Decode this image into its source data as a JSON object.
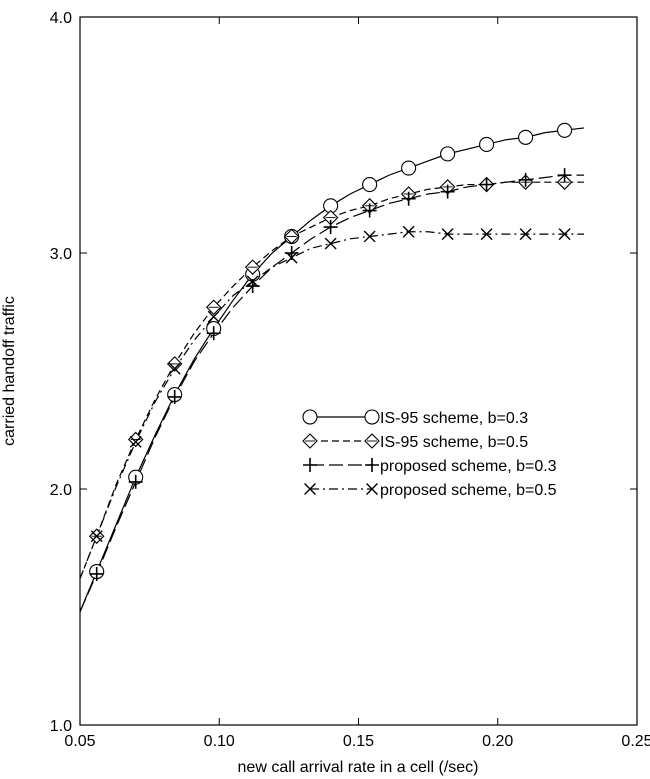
{
  "chart_data": {
    "type": "line",
    "title": "",
    "xlabel": "new call arrival rate in a cell (/sec)",
    "ylabel": "carried handoff traffic",
    "xlim": [
      0.05,
      0.25
    ],
    "ylim": [
      1.0,
      4.0
    ],
    "x_ticks": [
      "0.05",
      "0.10",
      "0.15",
      "0.20",
      "0.25"
    ],
    "y_ticks": [
      "1.0",
      "2.0",
      "3.0",
      "4.0"
    ],
    "grid": false,
    "legend_position": "center-right",
    "series": [
      {
        "name": "IS-95 scheme, b=0.3",
        "line_style": "solid",
        "marker": "circle",
        "x": [
          0.056,
          0.07,
          0.084,
          0.098,
          0.112,
          0.126,
          0.14,
          0.154,
          0.168,
          0.182,
          0.196,
          0.21,
          0.224
        ],
        "y": [
          1.65,
          2.05,
          2.4,
          2.68,
          2.91,
          3.07,
          3.2,
          3.29,
          3.36,
          3.42,
          3.46,
          3.49,
          3.52
        ],
        "curve_x": [
          0.05,
          0.056,
          0.063,
          0.07,
          0.077,
          0.084,
          0.091,
          0.098,
          0.105,
          0.112,
          0.119,
          0.126,
          0.133,
          0.14,
          0.147,
          0.154,
          0.161,
          0.168,
          0.175,
          0.182,
          0.189,
          0.196,
          0.203,
          0.21,
          0.217,
          0.224,
          0.231
        ],
        "curve_y": [
          1.48,
          1.65,
          1.85,
          2.05,
          2.23,
          2.4,
          2.55,
          2.68,
          2.8,
          2.91,
          3.0,
          3.07,
          3.14,
          3.2,
          3.25,
          3.29,
          3.33,
          3.36,
          3.39,
          3.42,
          3.44,
          3.46,
          3.48,
          3.49,
          3.51,
          3.52,
          3.53
        ]
      },
      {
        "name": "IS-95 scheme, b=0.5",
        "line_style": "dashed",
        "marker": "diamond",
        "x": [
          0.056,
          0.07,
          0.084,
          0.098,
          0.112,
          0.126,
          0.14,
          0.154,
          0.168,
          0.182,
          0.196,
          0.21,
          0.224
        ],
        "y": [
          1.8,
          2.21,
          2.53,
          2.77,
          2.94,
          3.07,
          3.15,
          3.2,
          3.25,
          3.28,
          3.29,
          3.3,
          3.3
        ],
        "curve_x": [
          0.05,
          0.056,
          0.063,
          0.07,
          0.077,
          0.084,
          0.091,
          0.098,
          0.105,
          0.112,
          0.119,
          0.126,
          0.133,
          0.14,
          0.147,
          0.154,
          0.161,
          0.168,
          0.175,
          0.182,
          0.189,
          0.196,
          0.203,
          0.21,
          0.217,
          0.224,
          0.231
        ],
        "curve_y": [
          1.62,
          1.8,
          2.02,
          2.21,
          2.38,
          2.53,
          2.66,
          2.77,
          2.86,
          2.94,
          3.01,
          3.07,
          3.11,
          3.15,
          3.18,
          3.2,
          3.23,
          3.25,
          3.27,
          3.28,
          3.29,
          3.29,
          3.3,
          3.3,
          3.3,
          3.3,
          3.3
        ]
      },
      {
        "name": "proposed scheme, b=0.3",
        "line_style": "long-dash",
        "marker": "plus",
        "x": [
          0.056,
          0.07,
          0.084,
          0.098,
          0.112,
          0.126,
          0.14,
          0.154,
          0.168,
          0.182,
          0.196,
          0.21,
          0.224
        ],
        "y": [
          1.64,
          2.03,
          2.39,
          2.66,
          2.86,
          3.0,
          3.11,
          3.18,
          3.23,
          3.26,
          3.29,
          3.31,
          3.33
        ],
        "curve_x": [
          0.05,
          0.056,
          0.063,
          0.07,
          0.077,
          0.084,
          0.091,
          0.098,
          0.105,
          0.112,
          0.119,
          0.126,
          0.133,
          0.14,
          0.147,
          0.154,
          0.161,
          0.168,
          0.175,
          0.182,
          0.189,
          0.196,
          0.203,
          0.21,
          0.217,
          0.224,
          0.231
        ],
        "curve_y": [
          1.48,
          1.64,
          1.84,
          2.03,
          2.22,
          2.39,
          2.54,
          2.66,
          2.77,
          2.86,
          2.94,
          3.0,
          3.06,
          3.11,
          3.15,
          3.18,
          3.21,
          3.23,
          3.25,
          3.26,
          3.28,
          3.29,
          3.3,
          3.31,
          3.32,
          3.33,
          3.33
        ]
      },
      {
        "name": "proposed scheme, b=0.5",
        "line_style": "dash-dot",
        "marker": "cross",
        "x": [
          0.056,
          0.07,
          0.084,
          0.098,
          0.112,
          0.126,
          0.14,
          0.154,
          0.168,
          0.182,
          0.196,
          0.21,
          0.224
        ],
        "y": [
          1.8,
          2.2,
          2.51,
          2.73,
          2.88,
          2.98,
          3.04,
          3.07,
          3.09,
          3.08,
          3.08,
          3.08,
          3.08
        ],
        "curve_x": [
          0.05,
          0.056,
          0.063,
          0.07,
          0.077,
          0.084,
          0.091,
          0.098,
          0.105,
          0.112,
          0.119,
          0.126,
          0.133,
          0.14,
          0.147,
          0.154,
          0.161,
          0.168,
          0.175,
          0.182,
          0.189,
          0.196,
          0.203,
          0.21,
          0.217,
          0.224,
          0.231
        ],
        "curve_y": [
          1.62,
          1.8,
          2.01,
          2.2,
          2.37,
          2.51,
          2.63,
          2.73,
          2.82,
          2.88,
          2.94,
          2.98,
          3.02,
          3.04,
          3.06,
          3.07,
          3.08,
          3.09,
          3.09,
          3.08,
          3.08,
          3.08,
          3.08,
          3.08,
          3.08,
          3.08,
          3.08
        ]
      }
    ]
  }
}
